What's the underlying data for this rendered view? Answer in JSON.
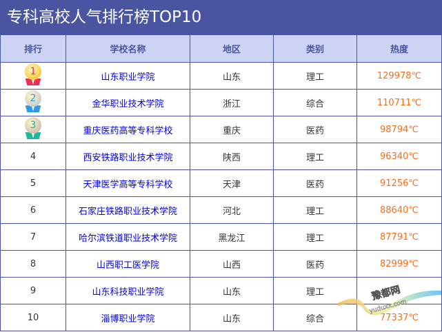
{
  "title": "专科高校人气排行榜TOP10",
  "headers": [
    "排行",
    "学校名称",
    "地区",
    "类别",
    "热度"
  ],
  "medal_colors": {
    "1": "#f5b800",
    "2": "#b8bcd0",
    "3": "#c0a8a4"
  },
  "rows": [
    {
      "rank": "1",
      "medal": true,
      "name": "山东职业学院",
      "region": "山东",
      "type": "理工",
      "heat": "129978℃"
    },
    {
      "rank": "2",
      "medal": true,
      "name": "金华职业技术学院",
      "region": "浙江",
      "type": "综合",
      "heat": "110711℃"
    },
    {
      "rank": "3",
      "medal": true,
      "name": "重庆医药高等专科学校",
      "region": "重庆",
      "type": "医药",
      "heat": "98794℃"
    },
    {
      "rank": "4",
      "name": "西安铁路职业技术学院",
      "region": "陕西",
      "type": "理工",
      "heat": "96340℃"
    },
    {
      "rank": "5",
      "name": "天津医学高等专科学校",
      "region": "天津",
      "type": "医药",
      "heat": "91256℃"
    },
    {
      "rank": "6",
      "name": "石家庄铁路职业技术学院",
      "region": "河北",
      "type": "理工",
      "heat": "88640℃"
    },
    {
      "rank": "7",
      "name": "哈尔滨铁道职业技术学院",
      "region": "黑龙江",
      "type": "理工",
      "heat": "87791℃"
    },
    {
      "rank": "8",
      "name": "山西职工医学院",
      "region": "山西",
      "type": "医药",
      "heat": "82999℃"
    },
    {
      "rank": "9",
      "name": "山东科技职业学院",
      "region": "山东",
      "type": "理工",
      "heat": ""
    },
    {
      "rank": "10",
      "name": "淄博职业学院",
      "region": "山东",
      "type": "综合",
      "heat": "77337℃"
    }
  ],
  "watermark": "豫都网 yuduxx.com"
}
